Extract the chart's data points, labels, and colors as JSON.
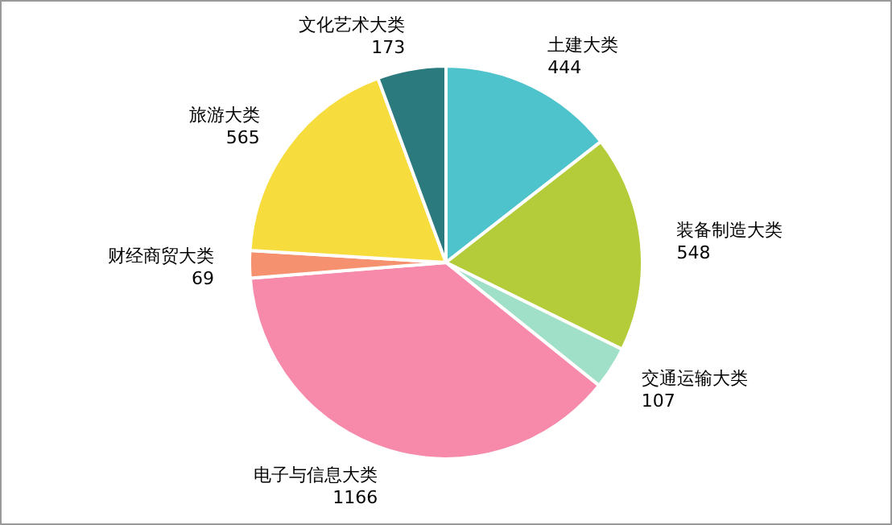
{
  "chart_data": {
    "type": "pie",
    "categories": [
      "土建大类",
      "装备制造大类",
      "交通运输大类",
      "电子与信息大类",
      "财经商贸大类",
      "旅游大类",
      "文化艺术大类"
    ],
    "values": [
      444,
      548,
      107,
      1166,
      69,
      565,
      173
    ],
    "colors": [
      "#4fc3cc",
      "#b5cc3a",
      "#a0dfc8",
      "#f78aaa",
      "#f5916e",
      "#f7dc3e",
      "#2a7a7e"
    ],
    "data_labels": true
  }
}
